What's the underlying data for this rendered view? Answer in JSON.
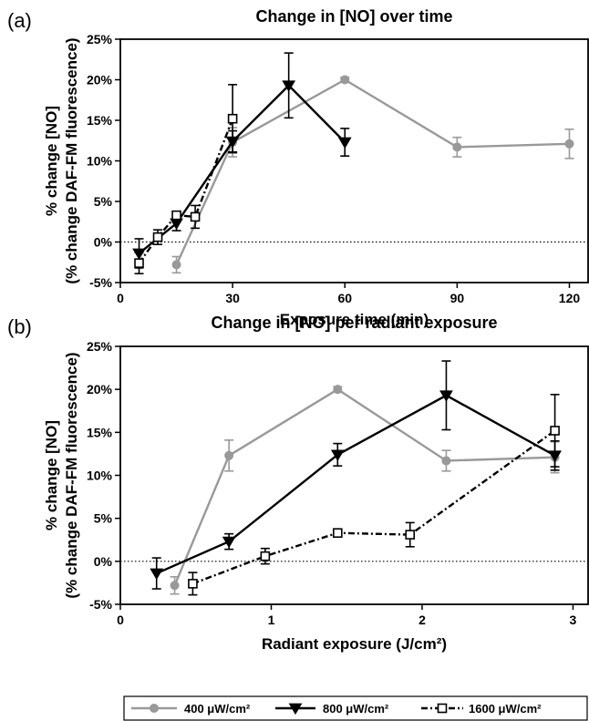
{
  "chart_data": [
    {
      "panel_label": "(a)",
      "type": "line",
      "title": "Change in [NO] over time",
      "xlabel": "Exposure time (min)",
      "ylabel_line1": "% change [NO]",
      "ylabel_line2": "(% change DAF-FM fluorescence)",
      "xlim": [
        0,
        125
      ],
      "ylim": [
        -5,
        25
      ],
      "xticks": [
        0,
        30,
        60,
        90,
        120
      ],
      "xtick_labels": [
        "0",
        "30",
        "60",
        "90",
        "120"
      ],
      "yticks": [
        -5,
        0,
        5,
        10,
        15,
        20,
        25
      ],
      "ytick_labels": [
        "-5%",
        "0%",
        "5%",
        "10%",
        "15%",
        "20%",
        "25%"
      ],
      "reference_line_y": 0,
      "series": [
        {
          "name": "400 μW/cm²",
          "color": "#999999",
          "marker": "circle",
          "dash": "solid",
          "points": [
            {
              "x": 15,
              "y": -2.8,
              "err": 1.0
            },
            {
              "x": 30,
              "y": 12.3,
              "err": 1.8
            },
            {
              "x": 60,
              "y": 20.0,
              "err": 0.3
            },
            {
              "x": 90,
              "y": 11.7,
              "err": 1.2
            },
            {
              "x": 120,
              "y": 12.1,
              "err": 1.8
            }
          ]
        },
        {
          "name": "800 μW/cm²",
          "color": "#000000",
          "marker": "triangle-down",
          "dash": "solid",
          "points": [
            {
              "x": 5,
              "y": -1.4,
              "err": 1.8
            },
            {
              "x": 15,
              "y": 2.3,
              "err": 0.9
            },
            {
              "x": 30,
              "y": 12.4,
              "err": 1.3
            },
            {
              "x": 45,
              "y": 19.3,
              "err": 4.0
            },
            {
              "x": 60,
              "y": 12.3,
              "err": 1.7
            }
          ]
        },
        {
          "name": "1600 μW/cm²",
          "color": "#000000",
          "marker": "square-open",
          "dash": "dashdot",
          "points": [
            {
              "x": 5,
              "y": -2.6,
              "err": 1.3
            },
            {
              "x": 10,
              "y": 0.6,
              "err": 0.9
            },
            {
              "x": 15,
              "y": 3.3,
              "err": 0.4
            },
            {
              "x": 20,
              "y": 3.1,
              "err": 1.4
            },
            {
              "x": 30,
              "y": 15.2,
              "err": 4.2
            }
          ]
        }
      ]
    },
    {
      "panel_label": "(b)",
      "type": "line",
      "title": "Change in [NO] per radiant exposure",
      "xlabel": "Radiant exposure (J/cm²)",
      "ylabel_line1": "% change [NO]",
      "ylabel_line2": "(% change DAF-FM fluorescence)",
      "xlim": [
        0,
        3.1
      ],
      "ylim": [
        -5,
        25
      ],
      "xticks": [
        0,
        1,
        2,
        3
      ],
      "xtick_labels": [
        "0",
        "1",
        "2",
        "3"
      ],
      "yticks": [
        -5,
        0,
        5,
        10,
        15,
        20,
        25
      ],
      "ytick_labels": [
        "-5%",
        "0%",
        "5%",
        "10%",
        "15%",
        "20%",
        "25%"
      ],
      "reference_line_y": 0,
      "series": [
        {
          "name": "400 μW/cm²",
          "color": "#999999",
          "marker": "circle",
          "dash": "solid",
          "points": [
            {
              "x": 0.36,
              "y": -2.8,
              "err": 1.0
            },
            {
              "x": 0.72,
              "y": 12.3,
              "err": 1.8
            },
            {
              "x": 1.44,
              "y": 20.0,
              "err": 0.3
            },
            {
              "x": 2.16,
              "y": 11.7,
              "err": 1.2
            },
            {
              "x": 2.88,
              "y": 12.1,
              "err": 1.8
            }
          ]
        },
        {
          "name": "800 μW/cm²",
          "color": "#000000",
          "marker": "triangle-down",
          "dash": "solid",
          "points": [
            {
              "x": 0.24,
              "y": -1.4,
              "err": 1.8
            },
            {
              "x": 0.72,
              "y": 2.3,
              "err": 0.9
            },
            {
              "x": 1.44,
              "y": 12.4,
              "err": 1.3
            },
            {
              "x": 2.16,
              "y": 19.3,
              "err": 4.0
            },
            {
              "x": 2.88,
              "y": 12.3,
              "err": 1.7
            }
          ]
        },
        {
          "name": "1600 μW/cm²",
          "color": "#000000",
          "marker": "square-open",
          "dash": "dashdot",
          "points": [
            {
              "x": 0.48,
              "y": -2.6,
              "err": 1.3
            },
            {
              "x": 0.96,
              "y": 0.6,
              "err": 0.9
            },
            {
              "x": 1.44,
              "y": 3.3,
              "err": 0.4
            },
            {
              "x": 1.92,
              "y": 3.1,
              "err": 1.4
            },
            {
              "x": 2.88,
              "y": 15.2,
              "err": 4.2
            }
          ]
        }
      ]
    }
  ],
  "legend": {
    "placement": "bottom",
    "entries": [
      "400 μW/cm²",
      "800 μW/cm²",
      "1600 μW/cm²"
    ]
  }
}
